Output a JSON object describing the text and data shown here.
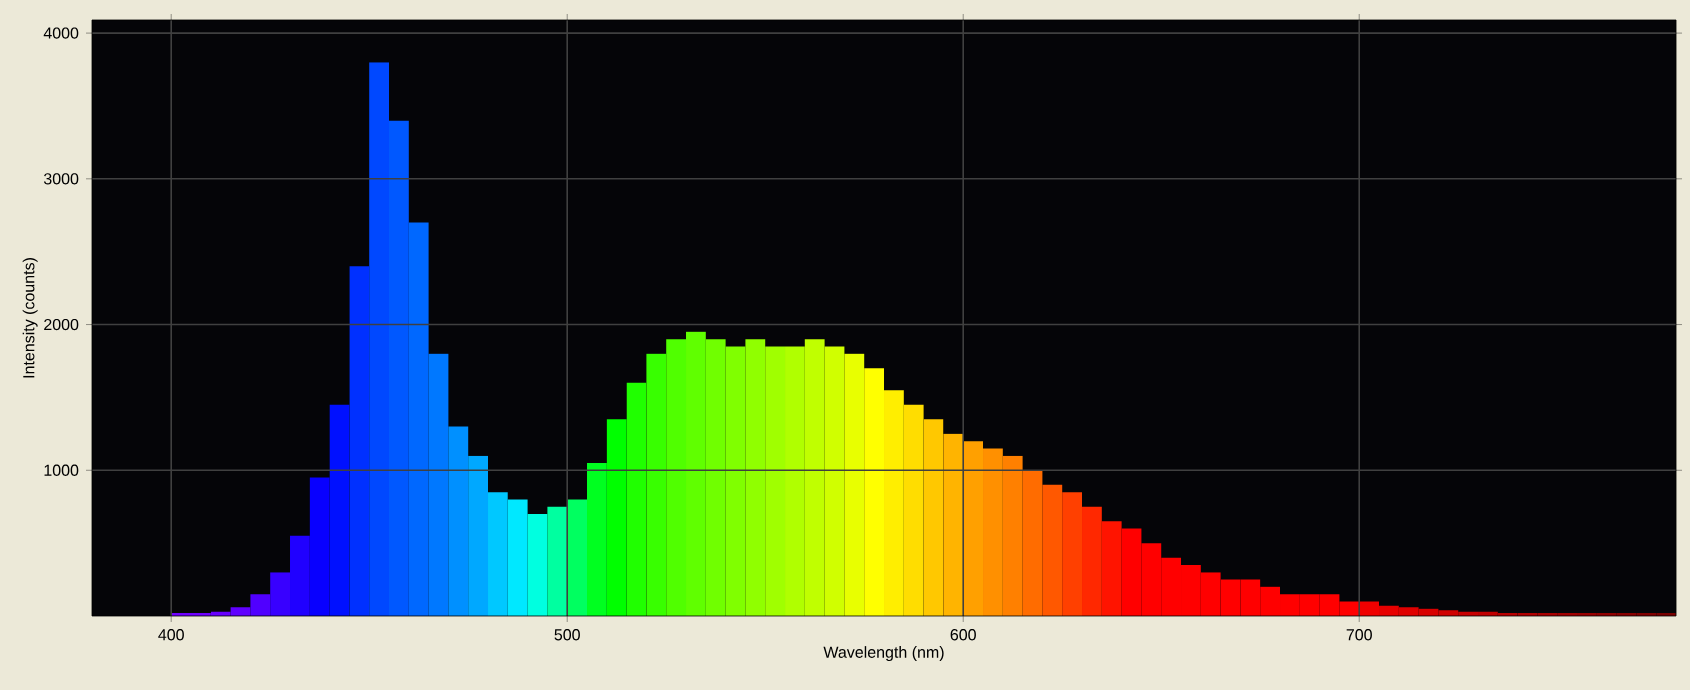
{
  "chart_data": {
    "type": "histogram",
    "xlabel": "Wavelength (nm)",
    "ylabel": "Intensity (counts)",
    "bins": [
      400,
      405,
      410,
      415,
      420,
      425,
      430,
      435,
      440,
      445,
      450,
      455,
      460,
      465,
      470,
      475,
      480,
      485,
      490,
      495,
      500,
      505,
      510,
      515,
      520,
      525,
      530,
      535,
      540,
      545,
      550,
      555,
      560,
      565,
      570,
      575,
      580,
      585,
      590,
      595,
      600,
      605,
      610,
      615,
      620,
      625,
      630,
      635,
      640,
      645,
      650,
      655,
      660,
      665,
      670,
      675,
      680,
      685,
      690,
      695,
      700,
      705,
      710,
      715,
      720,
      725,
      730,
      735,
      740,
      745,
      750,
      755,
      760,
      765,
      770,
      775,
      780
    ],
    "values": [
      20,
      20,
      30,
      60,
      150,
      300,
      550,
      950,
      1450,
      2400,
      3800,
      3400,
      2700,
      1800,
      1300,
      1100,
      850,
      800,
      700,
      750,
      800,
      1050,
      1350,
      1600,
      1800,
      1900,
      1950,
      1900,
      1850,
      1900,
      1850,
      1850,
      1900,
      1850,
      1800,
      1700,
      1550,
      1450,
      1350,
      1250,
      1200,
      1150,
      1100,
      1000,
      900,
      850,
      750,
      650,
      600,
      500,
      400,
      350,
      300,
      250,
      250,
      200,
      150,
      150,
      150,
      100,
      100,
      70,
      60,
      50,
      40,
      30,
      30,
      20,
      20,
      20,
      20,
      20,
      20,
      20,
      20,
      20
    ],
    "colors": [
      "#7000ff",
      "#7000ff",
      "#6800ff",
      "#6000ff",
      "#5000ff",
      "#3800ff",
      "#2000ff",
      "#0800ff",
      "#0010ff",
      "#0030ff",
      "#0048ff",
      "#0058ff",
      "#0068ff",
      "#0078ff",
      "#0090ff",
      "#00a8ff",
      "#00c8ff",
      "#00e8ff",
      "#00ffe0",
      "#00ffa0",
      "#00ff60",
      "#00ff20",
      "#00ff00",
      "#20ff00",
      "#38ff00",
      "#50ff00",
      "#60ff00",
      "#70ff00",
      "#80ff00",
      "#90ff00",
      "#a0ff00",
      "#b0ff00",
      "#c0ff00",
      "#d0ff00",
      "#e8ff00",
      "#ffff00",
      "#ffee00",
      "#ffdd00",
      "#ffc800",
      "#ffb400",
      "#ffa000",
      "#ff9000",
      "#ff8000",
      "#ff6c00",
      "#ff5800",
      "#ff4000",
      "#ff2800",
      "#ff1400",
      "#ff0000",
      "#ff0000",
      "#ff0000",
      "#ff0000",
      "#ff0000",
      "#ff0000",
      "#ff0000",
      "#ff0000",
      "#ff0000",
      "#ff0000",
      "#ff0000",
      "#ff0000",
      "#f00000",
      "#e80000",
      "#e00000",
      "#d80000",
      "#d00000",
      "#c80000",
      "#c00000",
      "#b80000",
      "#b00000",
      "#a80000",
      "#a00000",
      "#980000",
      "#900000",
      "#880000",
      "#800000",
      "#780000"
    ],
    "xlim": [
      380,
      780
    ],
    "ylim": [
      0,
      4090
    ],
    "xticks": [
      400,
      500,
      600,
      700
    ],
    "yticks": [
      1000,
      2000,
      3000,
      4000
    ],
    "grid": true
  }
}
